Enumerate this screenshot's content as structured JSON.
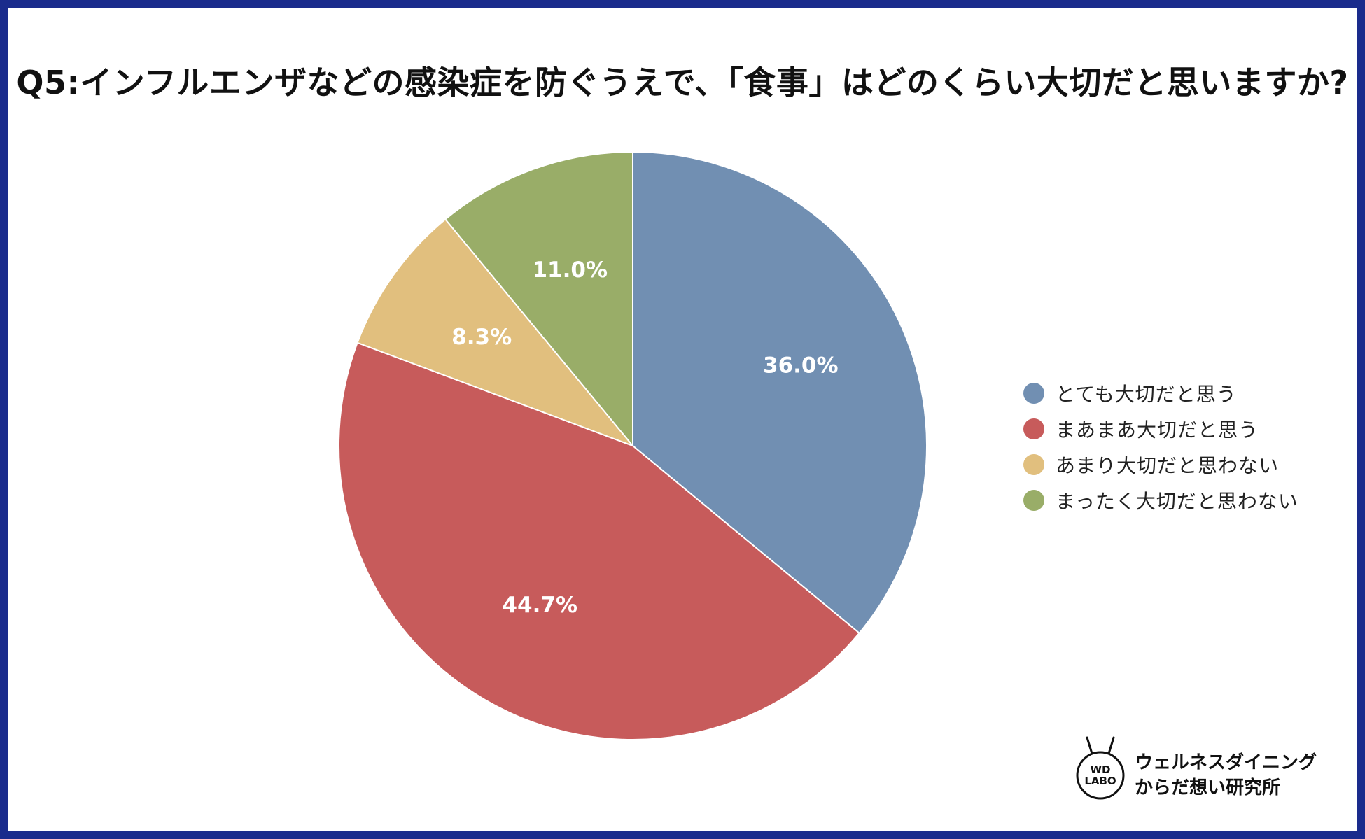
{
  "chart_data": {
    "type": "pie",
    "title": "Q5:インフルエンザなどの感染症を防ぐうえで、「食事」はどのくらい大切だと思いますか?",
    "categories": [
      "とても大切だと思う",
      "まあまあ大切だと思う",
      "あまり大切だと思わない",
      "まったく大切だと思わない"
    ],
    "values": [
      36.0,
      44.7,
      8.3,
      11.0
    ],
    "value_labels": [
      "36.0%",
      "44.7%",
      "8.3%",
      "11.0%"
    ],
    "colors": [
      "#718fb2",
      "#c75b5b",
      "#e1bf7e",
      "#99ad68"
    ],
    "start_angle": "12 o'clock",
    "direction": "clockwise",
    "legend": {
      "placement": "right",
      "items": [
        {
          "label": "とても大切だと思う",
          "color": "#718fb2"
        },
        {
          "label": "まあまあ大切だと思う",
          "color": "#c75b5b"
        },
        {
          "label": "あまり大切だと思わない",
          "color": "#e1bf7e"
        },
        {
          "label": "まったく大切だと思わない",
          "color": "#99ad68"
        }
      ]
    }
  },
  "branding": {
    "mark_text": "WD\nLABO",
    "line1": "ウェルネスダイニング",
    "line2": "からだ想い研究所"
  },
  "frame_color": "#1a2b8c"
}
